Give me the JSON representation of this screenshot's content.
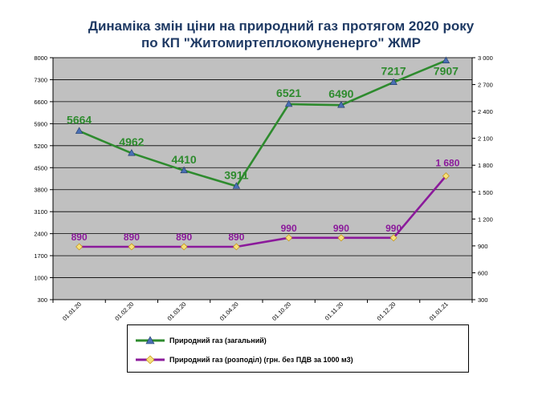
{
  "title": {
    "line1": "Динаміка змін ціни на природний газ протягом 2020 року",
    "line2": "по КП \"Житомиртеплокомуненерго\" ЖМР"
  },
  "chart_data": {
    "type": "line",
    "title": "Динаміка змін ціни на природний газ протягом 2020 року по КП \"Житомиртеплокомуненерго\" ЖМР",
    "categories": [
      "01.01.20",
      "01.02.20",
      "01.03.20",
      "01.04.20",
      "01.10.20",
      "01.11.20",
      "01.12.20",
      "01.01.21"
    ],
    "y_left": {
      "ylim": [
        300,
        8000
      ],
      "ticks": [
        8000,
        7300,
        6600,
        5900,
        5200,
        4500,
        3800,
        3100,
        2400,
        1700,
        1000,
        300
      ],
      "tick_labels": [
        "8000",
        "7300",
        "6600",
        "5900",
        "5200",
        "4500",
        "3800",
        "3100",
        "2400",
        "1700",
        "1000",
        "300"
      ]
    },
    "y_right": {
      "ylim": [
        300,
        3000
      ],
      "ticks": [
        3000,
        2700,
        2400,
        2100,
        1800,
        1500,
        1200,
        900,
        600,
        300
      ],
      "tick_labels": [
        "3 000",
        "2 700",
        "2 400",
        "2 100",
        "1 800",
        "1 500",
        "1 200",
        "900",
        "600",
        "300"
      ]
    },
    "grid": true,
    "legend_position": "bottom",
    "series": [
      {
        "name": "Природний газ (загальний)",
        "axis": "left",
        "color": "#2e8b2e",
        "marker_color": "#4a6fb5",
        "marker": "triangle",
        "values": [
          5664,
          4962,
          4410,
          3911,
          6521,
          6490,
          7217,
          7907
        ],
        "labels": [
          "5664",
          "4962",
          "4410",
          "3911",
          "6521",
          "6490",
          "7217",
          "7907"
        ]
      },
      {
        "name": "Природний газ (розподіл)  (грн. без ПДВ за 1000 м3)",
        "axis": "right",
        "color": "#8b1a9b",
        "marker_color": "#f5e07a",
        "marker": "diamond",
        "values": [
          890,
          890,
          890,
          890,
          990,
          990,
          990,
          1680
        ],
        "labels": [
          "890",
          "890",
          "890",
          "890",
          "990",
          "990",
          "990",
          "1 680"
        ]
      }
    ],
    "plot_background": "#c0c0c0"
  }
}
